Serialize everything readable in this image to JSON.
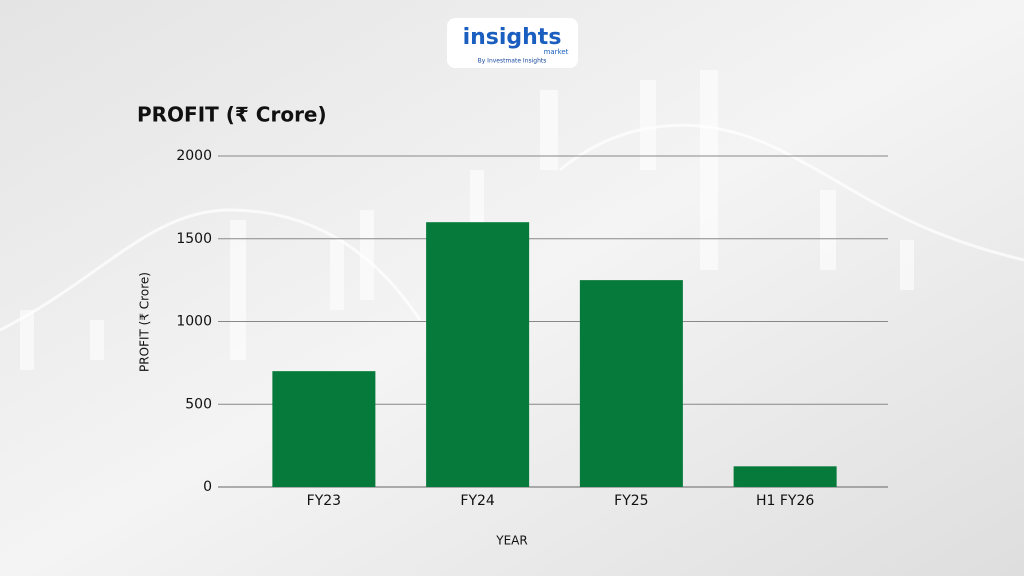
{
  "logo": {
    "name": "insights",
    "sub": "market",
    "tagline": "By Investmate Insights"
  },
  "chart_data": {
    "type": "bar",
    "title": "PROFIT (₹ Crore)",
    "y_label": "PROFIT (₹ Crore)",
    "x_label": "YEAR",
    "categories": [
      "FY23",
      "FY24",
      "FY25",
      "H1 FY26"
    ],
    "values": [
      700,
      1600,
      1250,
      125
    ],
    "color": "#067a3a",
    "ylim": [
      0,
      2000
    ],
    "yticks": [
      0,
      500,
      1000,
      1500,
      2000
    ],
    "grid": true
  }
}
